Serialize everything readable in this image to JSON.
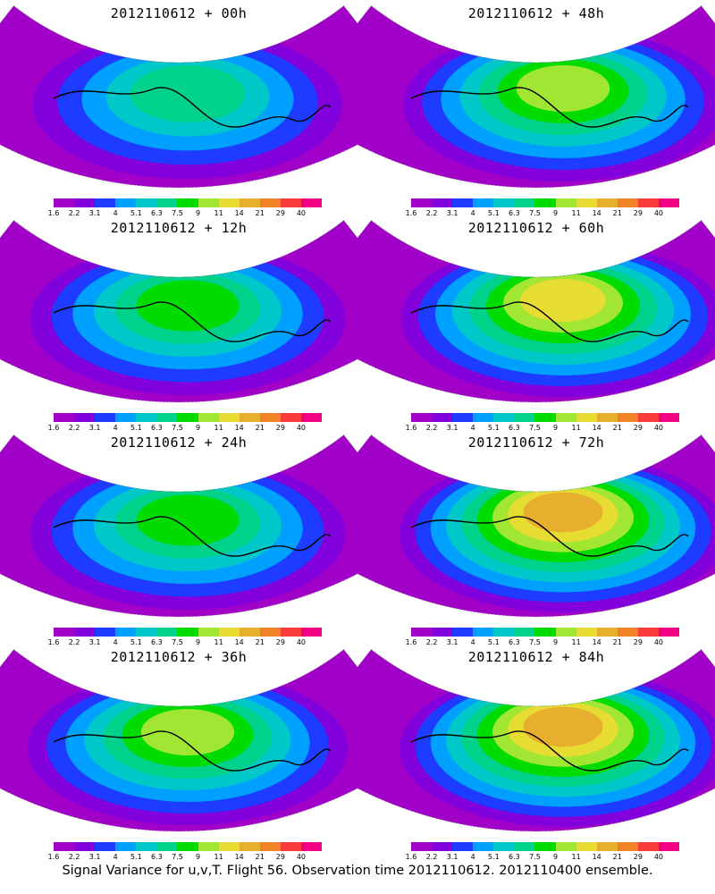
{
  "panels": [
    {
      "title": "2012110612 + 00h",
      "lead": "00h"
    },
    {
      "title": "2012110612 + 48h",
      "lead": "48h"
    },
    {
      "title": "2012110612 + 12h",
      "lead": "12h"
    },
    {
      "title": "2012110612 + 60h",
      "lead": "60h"
    },
    {
      "title": "2012110612 + 24h",
      "lead": "24h"
    },
    {
      "title": "2012110612 + 72h",
      "lead": "72h"
    },
    {
      "title": "2012110612 + 36h",
      "lead": "36h"
    },
    {
      "title": "2012110612 + 84h",
      "lead": "84h"
    }
  ],
  "colorbar": {
    "labels": [
      "1.6",
      "2.2",
      "3.1",
      "4",
      "5.1",
      "6.3",
      "7.5",
      "9",
      "11",
      "14",
      "21",
      "29",
      "40"
    ],
    "colors": [
      "#a000c8",
      "#8200dc",
      "#1e3cff",
      "#00a0ff",
      "#00c8c8",
      "#00d28c",
      "#00dc00",
      "#a0e632",
      "#e6dc32",
      "#e6af2d",
      "#f08228",
      "#fa3c3c",
      "#f00082"
    ]
  },
  "caption": "Signal Variance for u,v,T. Flight 56. Observation time 2012110612. 2012110400 ensemble."
}
